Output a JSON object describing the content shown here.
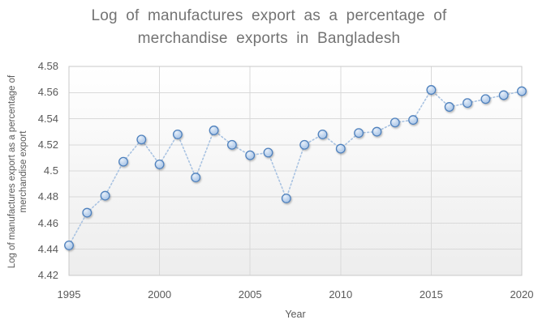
{
  "chart": {
    "title_lines": [
      "Log of manufactures export as a percentage of",
      "merchandise exports in Bangladesh"
    ],
    "y_axis_title_lines": [
      "Log of manufactures export as a percentage of",
      "merchandise export"
    ],
    "x_axis_title": "Year"
  },
  "chart_data": {
    "type": "line",
    "title": "Log of manufactures export as a percentage of merchandise exports in Bangladesh",
    "xlabel": "Year",
    "ylabel": "Log of manufactures export as a percentage of merchandise export",
    "x": [
      1995,
      1996,
      1997,
      1998,
      1999,
      2000,
      2001,
      2002,
      2003,
      2004,
      2005,
      2006,
      2007,
      2008,
      2009,
      2010,
      2011,
      2012,
      2013,
      2014,
      2015,
      2016,
      2017,
      2018,
      2019,
      2020
    ],
    "values": [
      4.443,
      4.468,
      4.481,
      4.507,
      4.524,
      4.505,
      4.528,
      4.495,
      4.531,
      4.52,
      4.512,
      4.514,
      4.479,
      4.52,
      4.528,
      4.517,
      4.529,
      4.53,
      4.537,
      4.539,
      4.562,
      4.549,
      4.552,
      4.555,
      4.558,
      4.561
    ],
    "xlim": [
      1995,
      2020
    ],
    "ylim": [
      4.42,
      4.58
    ],
    "x_ticks": [
      1995,
      2000,
      2005,
      2010,
      2015,
      2020
    ],
    "y_ticks": [
      4.58,
      4.56,
      4.54,
      4.52,
      4.5,
      4.48,
      4.46,
      4.44,
      4.42
    ],
    "y_tick_labels": [
      "4.58",
      "4.56",
      "4.54",
      "4.52",
      "4.5",
      "4.48",
      "4.46",
      "4.44",
      "4.42"
    ],
    "grid": true,
    "legend": "none",
    "marker": "circle",
    "line_style": "dotted",
    "colors": {
      "title_text": "#737373",
      "tick_text": "#595959",
      "gridline": "#d9d9d9",
      "plot_border": "#c9c9c9",
      "plot_bg_top": "#ffffff",
      "plot_bg_bottom": "#ededed",
      "line": "#a9c3e2",
      "marker_border": "#4f81bd",
      "marker_fill": "#b9d0ec",
      "marker_fill_light": "#e7eff9",
      "marker_fill_edge": "#a3c0e4"
    }
  }
}
